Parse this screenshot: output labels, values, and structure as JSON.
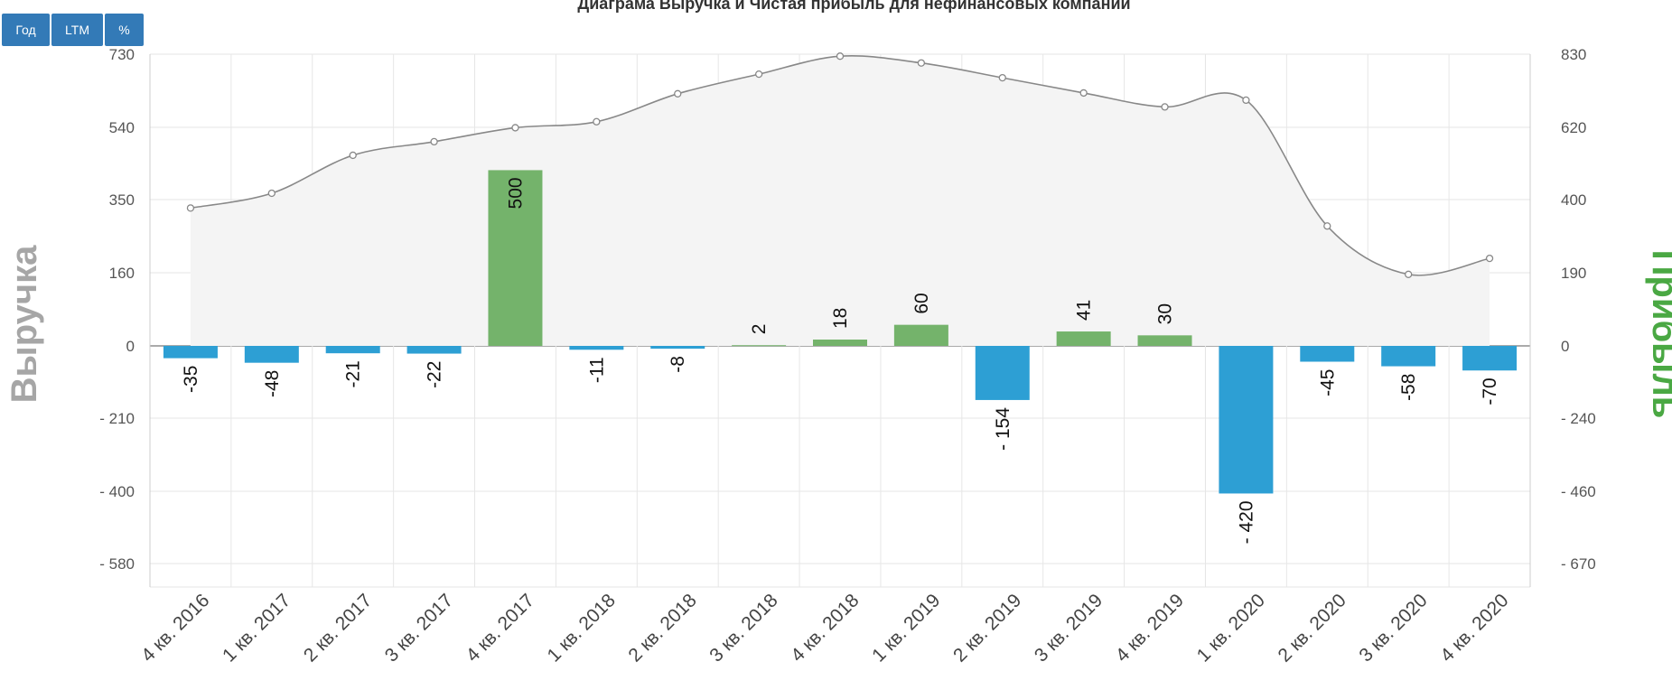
{
  "title": "Диаграма Выручка и Чистая прибыль для нефинансовых компании",
  "buttons": [
    {
      "label": "Год"
    },
    {
      "label": "LTM"
    },
    {
      "label": "%"
    }
  ],
  "colors": {
    "positive": "#74b36b",
    "negative": "#2d9fd4",
    "line": "#888888",
    "area": "#f4f4f4",
    "left_axis_title": "#a6a6a6",
    "right_axis_title": "#4aa843"
  },
  "chart_data": {
    "type": "bar",
    "title": "Диаграма Выручка и Чистая прибыль для нефинансовых компании",
    "categories": [
      "4 кв. 2016",
      "1 кв. 2017",
      "2 кв. 2017",
      "3 кв. 2017",
      "4 кв. 2017",
      "1 кв. 2018",
      "2 кв. 2018",
      "3 кв. 2018",
      "4 кв. 2018",
      "1 кв. 2019",
      "2 кв. 2019",
      "3 кв. 2019",
      "4 кв. 2019",
      "1 кв. 2020",
      "2 кв. 2020",
      "3 кв. 2020",
      "4 кв. 2020"
    ],
    "series": [
      {
        "type": "area-spline",
        "axis": "left",
        "values": [
          345,
          382,
          477,
          511,
          546,
          561,
          631,
          680,
          725,
          708,
          671,
          633,
          598,
          615,
          300,
          179,
          219
        ]
      },
      {
        "type": "bar",
        "axis": "right",
        "values": [
          -35,
          -48,
          -21,
          -22,
          500,
          -11,
          -8,
          2,
          18,
          60,
          -154,
          41,
          30,
          -420,
          -45,
          -58,
          -70
        ],
        "labels": [
          "-35",
          "-48",
          "-21",
          "-22",
          "500",
          "-11",
          "-8",
          "2",
          "18",
          "60",
          "- 154",
          "41",
          "30",
          "- 420",
          "-45",
          "-58",
          "-70"
        ]
      }
    ],
    "ylabel": "Выручка",
    "y2label": "Прибыль",
    "yticks": [
      "730",
      "540",
      "350",
      "160",
      "0",
      "- 210",
      "- 400",
      "- 580"
    ],
    "y2ticks": [
      "830",
      "620",
      "400",
      "190",
      "0",
      "- 240",
      "- 460",
      "- 670"
    ],
    "ylim": [
      -640,
      730
    ],
    "y2lim": [
      -730,
      830
    ],
    "grid": true,
    "legend": "none"
  }
}
